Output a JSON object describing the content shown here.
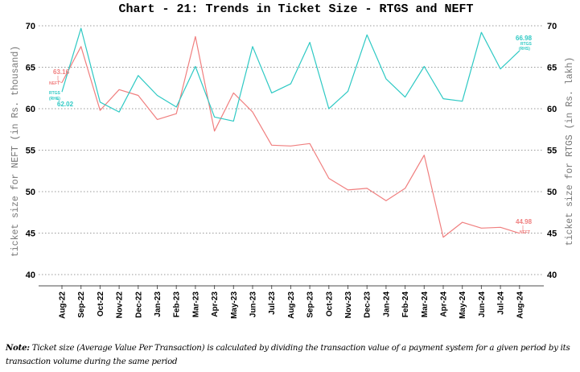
{
  "chart_data": {
    "type": "line",
    "title": "Chart - 21: Trends in Ticket Size - RTGS and NEFT",
    "xlabel": "",
    "ylabel_left": "ticket size for NEFT (in Rs. thousand)",
    "ylabel_right": "ticket size for RTGS (in Rs. lakh)",
    "ylim_left": [
      40,
      70
    ],
    "ylim_right": [
      40,
      70
    ],
    "yticks_left": [
      40,
      45,
      50,
      55,
      60,
      65,
      70
    ],
    "yticks_right": [
      40,
      45,
      50,
      55,
      60,
      65,
      70
    ],
    "grid": true,
    "categories": [
      "Aug-22",
      "Sep-22",
      "Oct-22",
      "Nov-22",
      "Dec-22",
      "Jan-23",
      "Feb-23",
      "Mar-23",
      "Apr-23",
      "May-23",
      "Jun-23",
      "Jul-23",
      "Aug-23",
      "Sep-23",
      "Oct-23",
      "Nov-23",
      "Dec-23",
      "Jan-24",
      "Feb-24",
      "Mar-24",
      "Apr-24",
      "May-24",
      "Jun-24",
      "Jul-24",
      "Aug-24"
    ],
    "series": [
      {
        "name": "NEFT",
        "axis": "left",
        "color": "#f07f7f",
        "values": [
          63.16,
          67.5,
          59.8,
          62.3,
          61.6,
          58.7,
          59.4,
          68.7,
          57.3,
          61.9,
          59.6,
          55.6,
          55.5,
          55.8,
          51.6,
          50.2,
          50.4,
          48.9,
          50.4,
          54.4,
          44.5,
          46.3,
          45.6,
          45.7,
          44.98
        ]
      },
      {
        "name": "RTGS (RHS)",
        "axis": "right",
        "color": "#2ec9c4",
        "values": [
          62.02,
          69.7,
          60.8,
          59.6,
          64.0,
          61.6,
          60.2,
          65.1,
          59.0,
          58.5,
          67.5,
          61.9,
          63.0,
          68.0,
          60.0,
          62.1,
          68.9,
          63.6,
          61.4,
          65.1,
          61.2,
          60.9,
          69.2,
          64.8,
          66.98
        ]
      }
    ],
    "annotations": {
      "neft_start": {
        "value": "63.16",
        "label": "NEFT"
      },
      "rtgs_start": {
        "value": "62.02",
        "label1": "RTGS",
        "label2": "(RHS)"
      },
      "neft_end": {
        "value": "44.98",
        "label": "NEFT"
      },
      "rtgs_end": {
        "value": "66.98",
        "label1": "RTGS",
        "label2": "(RHS)"
      }
    }
  },
  "note": {
    "bold_prefix": "Note:",
    "text": " Ticket size (Average Value Per Transaction) is calculated by dividing the transaction value of a payment system for a given period by its transaction volume during the same period"
  }
}
